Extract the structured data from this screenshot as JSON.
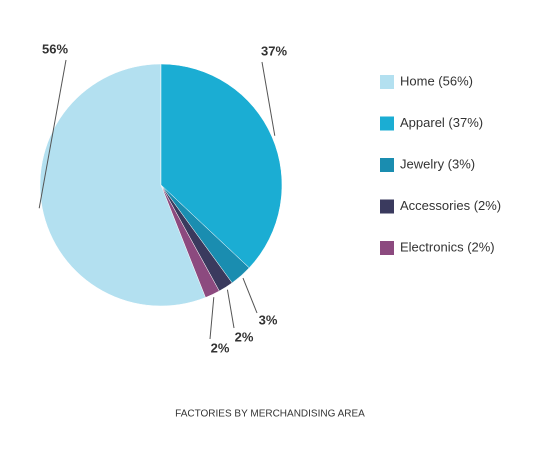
{
  "chart_data": {
    "type": "pie",
    "title": "FACTORIES BY MERCHANDISING AREA",
    "categories": [
      "Home (56%)",
      "Apparel (37%)",
      "Jewelry (3%)",
      "Accessories (2%)",
      "Electronics (2%)"
    ],
    "values": [
      56,
      37,
      3,
      2,
      2
    ],
    "value_labels": [
      "56%",
      "37%",
      "3%",
      "2%",
      "2%"
    ],
    "colors": [
      "#b3e0f0",
      "#1badd3",
      "#1a8db0",
      "#3a3a5e",
      "#8c4a7f"
    ],
    "legend": "right"
  }
}
